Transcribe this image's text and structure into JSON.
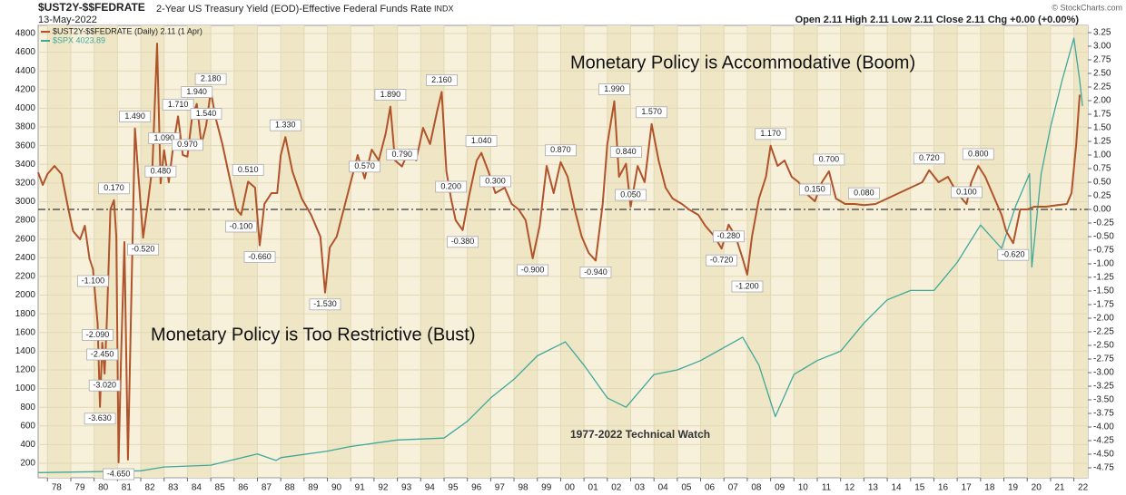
{
  "chart_data": {
    "type": "line",
    "symbol": "$UST2Y-$$FEDRATE",
    "title": "2-Year US Treasury Yield (EOD)-Effective Federal Funds Rate",
    "exchange": "INDX",
    "date": "13-May-2022",
    "quote": "Open 2.11  High 2.11  Low 2.11  Close 2.11  Chg +0.00 (+0.00%)",
    "watermark": "© StockCharts.com",
    "annotations": [
      "Monetary Policy is Accommodative (Boom)",
      "Monetary Policy is Too Restrictive (Bust)",
      "1977-2022 Technical Watch"
    ],
    "xlim": [
      1977.6,
      2022.6
    ],
    "xticks": [
      {
        "value": 1978,
        "label": "78"
      },
      {
        "value": 1979,
        "label": "79"
      },
      {
        "value": 1980,
        "label": "80"
      },
      {
        "value": 1981,
        "label": "81"
      },
      {
        "value": 1982,
        "label": "82"
      },
      {
        "value": 1983,
        "label": "83"
      },
      {
        "value": 1984,
        "label": "84"
      },
      {
        "value": 1985,
        "label": "85"
      },
      {
        "value": 1986,
        "label": "86"
      },
      {
        "value": 1987,
        "label": "87"
      },
      {
        "value": 1988,
        "label": "88"
      },
      {
        "value": 1989,
        "label": "89"
      },
      {
        "value": 1990,
        "label": "90"
      },
      {
        "value": 1991,
        "label": "91"
      },
      {
        "value": 1992,
        "label": "92"
      },
      {
        "value": 1993,
        "label": "93"
      },
      {
        "value": 1994,
        "label": "94"
      },
      {
        "value": 1995,
        "label": "95"
      },
      {
        "value": 1996,
        "label": "96"
      },
      {
        "value": 1997,
        "label": "97"
      },
      {
        "value": 1998,
        "label": "98"
      },
      {
        "value": 1999,
        "label": "99"
      },
      {
        "value": 2000,
        "label": "00"
      },
      {
        "value": 2001,
        "label": "01"
      },
      {
        "value": 2002,
        "label": "02"
      },
      {
        "value": 2003,
        "label": "03"
      },
      {
        "value": 2004,
        "label": "04"
      },
      {
        "value": 2005,
        "label": "05"
      },
      {
        "value": 2006,
        "label": "06"
      },
      {
        "value": 2007,
        "label": "07"
      },
      {
        "value": 2008,
        "label": "08"
      },
      {
        "value": 2009,
        "label": "09"
      },
      {
        "value": 2010,
        "label": "10"
      },
      {
        "value": 2011,
        "label": "11"
      },
      {
        "value": 2012,
        "label": "12"
      },
      {
        "value": 2013,
        "label": "13"
      },
      {
        "value": 2014,
        "label": "14"
      },
      {
        "value": 2015,
        "label": "15"
      },
      {
        "value": 2016,
        "label": "16"
      },
      {
        "value": 2017,
        "label": "17"
      },
      {
        "value": 2018,
        "label": "18"
      },
      {
        "value": 2019,
        "label": "19"
      },
      {
        "value": 2020,
        "label": "20"
      },
      {
        "value": 2021,
        "label": "21"
      },
      {
        "value": 2022,
        "label": "22"
      }
    ],
    "ylim": [
      45,
      4887
    ],
    "yticks": [
      200,
      400,
      600,
      800,
      1000,
      1200,
      1400,
      1600,
      1800,
      2000,
      2200,
      2400,
      2600,
      2800,
      3000,
      3200,
      3400,
      3600,
      3800,
      4000,
      4200,
      4400,
      4600,
      4800
    ],
    "y2lim": [
      -4.933,
      3.383
    ],
    "y2ticks": [
      3.25,
      {
        "value": 3,
        "label": "3.00"
      },
      2.75,
      {
        "value": 2.5,
        "label": "2.50"
      },
      2.25,
      {
        "value": 2,
        "label": "2.00"
      },
      1.75,
      {
        "value": 1.5,
        "label": "1.50"
      },
      1.25,
      {
        "value": 1,
        "label": "1.00"
      },
      0.75,
      {
        "value": 0.5,
        "label": "0.50"
      },
      0.25,
      {
        "value": 0,
        "label": "0.00"
      },
      -0.25,
      {
        "value": -0.5,
        "label": "-0.50"
      },
      -0.75,
      {
        "value": -1,
        "label": "-1.00"
      },
      -1.25,
      {
        "value": -1.5,
        "label": "-1.50"
      },
      -1.75,
      {
        "value": -2,
        "label": "-2.00"
      },
      -2.25,
      {
        "value": -2.5,
        "label": "-2.50"
      },
      -2.75,
      {
        "value": -3,
        "label": "-3.00"
      },
      -3.25,
      {
        "value": -3.5,
        "label": "-3.50"
      },
      -3.75,
      {
        "value": -4,
        "label": "-4.00"
      },
      -4.25,
      {
        "value": -4.5,
        "label": "-4.50"
      },
      -4.75
    ],
    "grid": true,
    "series": [
      {
        "name": "$UST2Y-$$FEDRATE (Daily) 2.11 (1 Apr)",
        "color": "#b0532a",
        "axis": "y2",
        "x": [
          1977.6,
          1977.8,
          1978.0,
          1978.3,
          1978.6,
          1978.9,
          1979.1,
          1979.4,
          1979.6,
          1979.8,
          1979.95,
          1980.05,
          1980.15,
          1980.25,
          1980.35,
          1980.45,
          1980.55,
          1980.7,
          1980.85,
          1980.95,
          1981.05,
          1981.15,
          1981.3,
          1981.45,
          1981.6,
          1981.75,
          1981.9,
          1982.1,
          1982.3,
          1982.5,
          1982.7,
          1982.85,
          1983.0,
          1983.2,
          1983.4,
          1983.6,
          1983.8,
          1984.0,
          1984.2,
          1984.4,
          1984.6,
          1984.8,
          1985.0,
          1985.2,
          1985.5,
          1985.8,
          1986.1,
          1986.3,
          1986.6,
          1986.9,
          1987.1,
          1987.3,
          1987.6,
          1987.85,
          1988.0,
          1988.2,
          1988.5,
          1988.9,
          1989.3,
          1989.7,
          1989.9,
          1990.1,
          1990.4,
          1990.7,
          1991.0,
          1991.3,
          1991.6,
          1991.9,
          1992.2,
          1992.5,
          1992.7,
          1992.9,
          1993.2,
          1993.5,
          1993.8,
          1994.1,
          1994.4,
          1994.7,
          1994.9,
          1995.1,
          1995.3,
          1995.5,
          1995.8,
          1996.1,
          1996.4,
          1996.6,
          1996.9,
          1997.2,
          1997.6,
          1997.9,
          1998.2,
          1998.5,
          1998.8,
          1999.1,
          1999.4,
          1999.7,
          2000.0,
          2000.3,
          2000.6,
          2000.9,
          2001.2,
          2001.5,
          2001.8,
          2002.0,
          2002.3,
          2002.5,
          2002.8,
          2003.0,
          2003.3,
          2003.6,
          2003.9,
          2004.2,
          2004.5,
          2004.8,
          2005.2,
          2005.5,
          2005.9,
          2006.2,
          2006.6,
          2006.9,
          2007.2,
          2007.5,
          2007.8,
          2008.0,
          2008.2,
          2008.5,
          2008.8,
          2009.0,
          2009.3,
          2009.6,
          2009.9,
          2010.2,
          2010.5,
          2010.9,
          2011.2,
          2011.5,
          2011.8,
          2012.2,
          2012.6,
          2013.0,
          2013.5,
          2014.0,
          2014.5,
          2015.0,
          2015.5,
          2015.8,
          2016.2,
          2016.6,
          2017.0,
          2017.4,
          2017.6,
          2017.9,
          2018.2,
          2018.5,
          2018.9,
          2019.1,
          2019.4,
          2019.7,
          2020.0,
          2020.3,
          2020.8,
          2021.3,
          2021.7,
          2021.9,
          2022.1,
          2022.25
        ],
        "values": [
          0.68,
          0.45,
          0.65,
          0.8,
          0.65,
          0.0,
          -0.4,
          -0.55,
          -0.3,
          -0.9,
          -1.1,
          -1.6,
          -2.09,
          -3.63,
          -2.45,
          -3.02,
          -2.0,
          0.0,
          0.17,
          -0.5,
          -4.65,
          -2.8,
          -0.6,
          -4.6,
          -1.5,
          1.49,
          0.6,
          -0.52,
          0.1,
          0.8,
          3.05,
          0.48,
          1.09,
          0.5,
          1.2,
          1.71,
          1.0,
          0.97,
          1.7,
          1.94,
          1.2,
          1.54,
          2.18,
          1.7,
          1.2,
          0.6,
          0.0,
          -0.1,
          0.51,
          0.4,
          -0.66,
          0.1,
          0.3,
          0.3,
          1.0,
          1.33,
          0.7,
          0.2,
          -0.1,
          -0.5,
          -1.53,
          -0.7,
          -0.5,
          0.0,
          0.5,
          1.0,
          0.57,
          1.1,
          0.9,
          1.4,
          1.89,
          0.9,
          0.79,
          1.1,
          0.9,
          1.5,
          1.2,
          1.8,
          2.16,
          0.7,
          0.2,
          -0.2,
          -0.38,
          0.3,
          0.9,
          1.04,
          0.7,
          0.3,
          0.4,
          0.1,
          0.0,
          -0.2,
          -0.9,
          -0.3,
          0.8,
          0.3,
          0.87,
          0.6,
          0.0,
          -0.5,
          -0.8,
          -0.94,
          0.1,
          1.2,
          1.99,
          0.6,
          0.84,
          0.05,
          0.8,
          0.5,
          1.57,
          0.9,
          0.4,
          0.2,
          0.1,
          0.0,
          -0.1,
          -0.3,
          -0.5,
          -0.72,
          -0.28,
          -0.5,
          -0.9,
          -1.2,
          -0.5,
          0.2,
          0.6,
          1.17,
          0.8,
          0.9,
          0.6,
          0.5,
          0.3,
          0.15,
          0.5,
          0.7,
          0.2,
          0.1,
          0.1,
          0.08,
          0.1,
          0.2,
          0.3,
          0.4,
          0.5,
          0.72,
          0.5,
          0.6,
          0.3,
          0.1,
          0.5,
          0.8,
          0.6,
          0.3,
          -0.1,
          -0.4,
          -0.62,
          0.0,
          0.0,
          0.05,
          0.05,
          0.08,
          0.1,
          0.3,
          1.2,
          2.11
        ]
      },
      {
        "name": "$SPX 4023.89",
        "color": "#3fa89b",
        "axis": "y",
        "x": [
          1977.6,
          1980,
          1982,
          1983,
          1985,
          1987,
          1987.8,
          1988,
          1990,
          1991,
          1993,
          1995,
          1996,
          1997,
          1998,
          1999,
          2000.2,
          2001,
          2002,
          2002.8,
          2004,
          2005,
          2006,
          2007.8,
          2008.5,
          2009.2,
          2010,
          2011,
          2012,
          2013,
          2014,
          2015,
          2016,
          2017,
          2018,
          2018.9,
          2019.5,
          2020.1,
          2020.2,
          2020.6,
          2021,
          2021.5,
          2022.0,
          2022.25,
          2022.37
        ],
        "values": [
          100,
          110,
          120,
          160,
          180,
          300,
          230,
          260,
          330,
          380,
          450,
          470,
          650,
          900,
          1100,
          1350,
          1500,
          1250,
          900,
          800,
          1150,
          1200,
          1300,
          1550,
          1250,
          700,
          1150,
          1300,
          1400,
          1700,
          1950,
          2050,
          2050,
          2350,
          2750,
          2500,
          2950,
          3300,
          2300,
          3300,
          3800,
          4300,
          4750,
          4300,
          4024
        ]
      }
    ],
    "peak_labels": [
      {
        "x": 1979.95,
        "value": -1.1,
        "label": "-1.100"
      },
      {
        "x": 1980.15,
        "value": -2.09,
        "label": "-2.090"
      },
      {
        "x": 1980.35,
        "value": -2.45,
        "label": "-2.450"
      },
      {
        "x": 1980.45,
        "value": -3.02,
        "label": "-3.020"
      },
      {
        "x": 1980.25,
        "value": -3.63,
        "label": "-3.630"
      },
      {
        "x": 1980.85,
        "value": 0.17,
        "label": "0.170"
      },
      {
        "x": 1981.05,
        "value": -4.65,
        "label": "-4.650"
      },
      {
        "x": 1981.75,
        "value": 1.49,
        "label": "1.490"
      },
      {
        "x": 1982.1,
        "value": -0.52,
        "label": "-0.520"
      },
      {
        "x": 1982.85,
        "value": 0.48,
        "label": "0.480"
      },
      {
        "x": 1983.0,
        "value": 1.09,
        "label": "1.090"
      },
      {
        "x": 1983.6,
        "value": 1.71,
        "label": "1.710"
      },
      {
        "x": 1984.0,
        "value": 0.97,
        "label": "0.970"
      },
      {
        "x": 1984.4,
        "value": 1.94,
        "label": "1.940"
      },
      {
        "x": 1984.8,
        "value": 1.54,
        "label": "1.540"
      },
      {
        "x": 1985.0,
        "value": 2.18,
        "label": "2.180"
      },
      {
        "x": 1986.3,
        "value": -0.1,
        "label": "-0.100"
      },
      {
        "x": 1986.6,
        "value": 0.51,
        "label": "0.510"
      },
      {
        "x": 1987.1,
        "value": -0.66,
        "label": "-0.660"
      },
      {
        "x": 1988.2,
        "value": 1.33,
        "label": "1.330"
      },
      {
        "x": 1989.9,
        "value": -1.53,
        "label": "-1.530"
      },
      {
        "x": 1991.6,
        "value": 0.57,
        "label": "0.570"
      },
      {
        "x": 1992.7,
        "value": 1.89,
        "label": "1.890"
      },
      {
        "x": 1993.2,
        "value": 0.79,
        "label": "0.790"
      },
      {
        "x": 1994.9,
        "value": 2.16,
        "label": "2.160"
      },
      {
        "x": 1995.3,
        "value": 0.2,
        "label": "0.200"
      },
      {
        "x": 1995.8,
        "value": -0.38,
        "label": "-0.380"
      },
      {
        "x": 1996.6,
        "value": 1.04,
        "label": "1.040"
      },
      {
        "x": 1997.2,
        "value": 0.3,
        "label": "0.300"
      },
      {
        "x": 1998.8,
        "value": -0.9,
        "label": "-0.900"
      },
      {
        "x": 2000.0,
        "value": 0.87,
        "label": "0.870"
      },
      {
        "x": 2001.5,
        "value": -0.94,
        "label": "-0.940"
      },
      {
        "x": 2002.3,
        "value": 1.99,
        "label": "1.990"
      },
      {
        "x": 2002.8,
        "value": 0.84,
        "label": "0.840"
      },
      {
        "x": 2003.0,
        "value": 0.05,
        "label": "0.050"
      },
      {
        "x": 2003.9,
        "value": 1.57,
        "label": "1.570"
      },
      {
        "x": 2006.9,
        "value": -0.72,
        "label": "-0.720"
      },
      {
        "x": 2007.2,
        "value": -0.28,
        "label": "-0.280"
      },
      {
        "x": 2008.0,
        "value": -1.2,
        "label": "-1.200"
      },
      {
        "x": 2009.0,
        "value": 1.17,
        "label": "1.170"
      },
      {
        "x": 2010.9,
        "value": 0.15,
        "label": "0.150"
      },
      {
        "x": 2011.5,
        "value": 0.7,
        "label": "0.700"
      },
      {
        "x": 2013.0,
        "value": 0.08,
        "label": "0.080"
      },
      {
        "x": 2015.8,
        "value": 0.72,
        "label": "0.720"
      },
      {
        "x": 2017.4,
        "value": 0.1,
        "label": "0.100"
      },
      {
        "x": 2017.9,
        "value": 0.8,
        "label": "0.800"
      },
      {
        "x": 2019.4,
        "value": -0.62,
        "label": "-0.620"
      }
    ]
  }
}
